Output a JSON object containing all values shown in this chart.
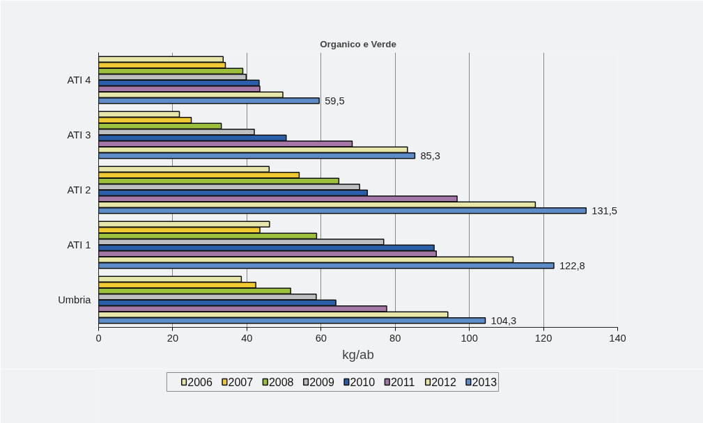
{
  "chart_data": {
    "type": "bar",
    "orientation": "horizontal",
    "title": "Organico e Verde",
    "xlabel": "kg/ab",
    "categories": [
      "ATI 4",
      "ATI 3",
      "ATI 2",
      "ATI 1",
      "Umbria"
    ],
    "series": [
      {
        "name": "2006",
        "color": "#e6e6a8",
        "values": [
          33.6,
          21.8,
          46.0,
          46.1,
          38.5
        ]
      },
      {
        "name": "2007",
        "color": "#f0c832",
        "values": [
          34.2,
          25.0,
          54.1,
          43.5,
          42.4
        ]
      },
      {
        "name": "2008",
        "color": "#9dc03c",
        "values": [
          38.9,
          33.1,
          64.8,
          58.8,
          51.8
        ]
      },
      {
        "name": "2009",
        "color": "#bcbec0",
        "values": [
          39.8,
          42.0,
          70.4,
          76.9,
          58.7
        ]
      },
      {
        "name": "2010",
        "color": "#2a5ea8",
        "values": [
          43.3,
          50.6,
          72.5,
          90.5,
          64.0
        ]
      },
      {
        "name": "2011",
        "color": "#a678a8",
        "values": [
          43.5,
          68.4,
          96.7,
          91.1,
          77.7
        ]
      },
      {
        "name": "2012",
        "color": "#e6e6a8",
        "values": [
          49.7,
          83.3,
          117.8,
          111.8,
          94.2
        ]
      },
      {
        "name": "2013",
        "color": "#5e8cc8",
        "values": [
          59.5,
          85.3,
          131.5,
          122.8,
          104.3
        ],
        "value_labels": [
          "59,5",
          "85,3",
          "131,5",
          "122,8",
          "104,3"
        ]
      }
    ],
    "xlim": [
      0,
      140
    ],
    "xticks": [
      0,
      20,
      40,
      60,
      80,
      100,
      120,
      140
    ],
    "grid": "x",
    "legend": "bottom"
  }
}
